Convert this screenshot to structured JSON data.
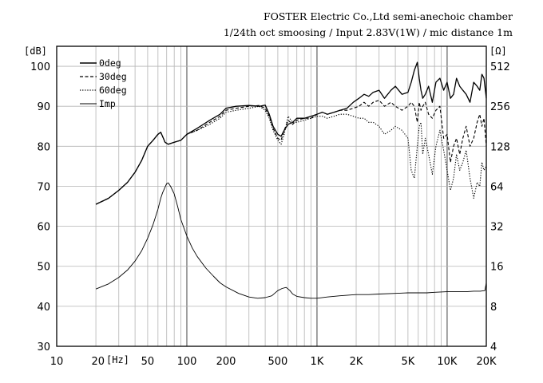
{
  "header": {
    "line1": "FOSTER Electric Co.,Ltd  semi-anechoic chamber",
    "line2": "1/24th oct smoosing / Input 2.83V(1W) / mic distance 1m"
  },
  "chart_data": {
    "type": "line",
    "y_unit_left": "[dB]",
    "y_unit_right": "[Ω]",
    "x_unit": "[Hz]",
    "xscale": "log",
    "xlim": [
      10,
      20000
    ],
    "ylim": [
      30,
      105
    ],
    "y2lim": [
      4,
      724
    ],
    "x_ticks": [
      {
        "v": 10,
        "l": "10"
      },
      {
        "v": 20,
        "l": "20"
      },
      {
        "v": 50,
        "l": "50"
      },
      {
        "v": 100,
        "l": "100"
      },
      {
        "v": 200,
        "l": "200"
      },
      {
        "v": 500,
        "l": "500"
      },
      {
        "v": 1000,
        "l": "1K"
      },
      {
        "v": 2000,
        "l": "2K"
      },
      {
        "v": 5000,
        "l": "5K"
      },
      {
        "v": 10000,
        "l": "10K"
      },
      {
        "v": 20000,
        "l": "20K"
      }
    ],
    "y_ticks": [
      30,
      40,
      50,
      60,
      70,
      80,
      90,
      100
    ],
    "y2_ticks": [
      4,
      8,
      16,
      32,
      64,
      128,
      256,
      512
    ],
    "grid": true,
    "legend_position": "top-left",
    "series": [
      {
        "name": "0deg",
        "dash": "solid",
        "width": 1.3,
        "x": [
          20,
          25,
          30,
          35,
          40,
          45,
          50,
          55,
          60,
          63,
          65,
          68,
          72,
          80,
          90,
          100,
          120,
          150,
          180,
          200,
          240,
          300,
          360,
          400,
          430,
          460,
          500,
          530,
          560,
          600,
          650,
          700,
          800,
          900,
          1000,
          1100,
          1200,
          1350,
          1500,
          1700,
          1900,
          2100,
          2300,
          2500,
          2700,
          3000,
          3300,
          3700,
          4000,
          4500,
          5000,
          5300,
          5600,
          5900,
          6100,
          6300,
          6500,
          6800,
          7200,
          7700,
          8200,
          8800,
          9400,
          10000,
          10600,
          11200,
          11800,
          12500,
          13200,
          14000,
          15000,
          16000,
          17000,
          17800,
          18500,
          19200,
          20000
        ],
        "y": [
          65.5,
          67,
          69,
          71,
          73.5,
          76.5,
          80,
          81.5,
          83,
          83.5,
          82.5,
          81,
          80.5,
          81,
          81.5,
          83,
          84.5,
          86.5,
          88,
          89.5,
          90,
          90.2,
          90,
          90.3,
          88,
          85,
          83,
          82.5,
          84,
          85.5,
          86,
          87,
          87,
          87.5,
          88,
          88.5,
          88,
          88.5,
          89,
          89.5,
          91,
          92,
          93,
          92.5,
          93.5,
          94,
          92,
          94,
          95,
          93,
          93.5,
          96,
          99,
          101,
          97,
          94,
          92,
          93,
          95,
          91,
          96,
          97,
          94,
          96,
          92,
          93,
          97,
          95,
          94,
          93,
          91,
          96,
          95,
          94,
          98,
          97,
          92
        ]
      },
      {
        "name": "30deg",
        "dash": "4,2.5",
        "width": 1.1,
        "x": [
          20,
          25,
          30,
          35,
          40,
          45,
          50,
          55,
          60,
          63,
          65,
          68,
          72,
          80,
          90,
          100,
          120,
          150,
          180,
          200,
          240,
          300,
          360,
          400,
          430,
          460,
          500,
          530,
          560,
          600,
          650,
          700,
          800,
          900,
          1000,
          1100,
          1200,
          1350,
          1500,
          1700,
          1900,
          2100,
          2300,
          2500,
          2700,
          3000,
          3300,
          3700,
          4000,
          4500,
          5000,
          5300,
          5600,
          5900,
          6100,
          6300,
          6500,
          6800,
          7200,
          7700,
          8200,
          8800,
          9400,
          10000,
          10600,
          11200,
          11800,
          12500,
          13200,
          14000,
          15000,
          16000,
          17000,
          17800,
          18500,
          19200,
          20000
        ],
        "y": [
          65.5,
          67,
          69,
          71,
          73.5,
          76.5,
          80,
          81.5,
          83,
          83.5,
          82.5,
          81,
          80.5,
          81,
          81.5,
          83,
          84,
          86,
          87.5,
          89,
          89.5,
          90,
          90.2,
          89.5,
          87.5,
          84.5,
          82,
          81.5,
          84,
          86.5,
          85.5,
          86.5,
          87,
          87,
          88,
          88.5,
          88,
          88.5,
          89,
          89,
          89.5,
          90,
          91,
          90,
          91,
          91.5,
          90,
          91,
          90,
          89,
          90,
          91,
          90,
          86,
          91,
          89,
          90,
          91,
          88,
          87,
          89,
          90,
          82,
          83,
          76,
          80,
          82,
          78,
          82,
          85,
          80,
          82,
          86,
          88,
          85,
          87,
          80
        ]
      },
      {
        "name": "60deg",
        "dash": "1.3,1.8",
        "width": 1.1,
        "x": [
          20,
          25,
          30,
          35,
          40,
          45,
          50,
          55,
          60,
          63,
          65,
          68,
          72,
          80,
          90,
          100,
          120,
          150,
          180,
          200,
          240,
          300,
          360,
          400,
          430,
          460,
          500,
          530,
          560,
          600,
          650,
          700,
          800,
          900,
          1000,
          1100,
          1200,
          1350,
          1500,
          1700,
          1900,
          2100,
          2300,
          2500,
          2700,
          3000,
          3300,
          3700,
          4000,
          4500,
          5000,
          5300,
          5600,
          5900,
          6100,
          6300,
          6500,
          6800,
          7200,
          7700,
          8200,
          8800,
          9400,
          10000,
          10600,
          11200,
          11800,
          12500,
          13200,
          14000,
          15000,
          16000,
          17000,
          17800,
          18500,
          19200,
          20000
        ],
        "y": [
          65.5,
          67,
          69,
          71,
          73.5,
          76.5,
          80,
          81.5,
          83,
          83.5,
          82.5,
          81,
          80.5,
          81,
          81.5,
          83,
          84,
          85.5,
          87,
          88.5,
          89,
          89.5,
          90,
          89,
          87,
          84,
          81.5,
          80.5,
          83,
          87.5,
          86,
          86,
          86.5,
          87,
          87.5,
          87.5,
          87,
          87.5,
          88,
          88,
          87.5,
          87,
          87,
          86,
          86,
          85,
          83,
          84,
          85,
          84,
          82,
          74,
          72,
          80,
          85,
          86,
          78,
          82,
          78,
          73,
          80,
          84,
          79,
          74,
          69,
          72,
          78,
          74,
          76,
          79,
          72,
          67,
          71,
          70,
          76,
          74,
          75
        ]
      },
      {
        "name": "Imp",
        "dash": "solid",
        "width": 0.9,
        "x": [
          20,
          25,
          30,
          35,
          40,
          45,
          50,
          55,
          60,
          63,
          65,
          68,
          70,
          72,
          75,
          80,
          85,
          90,
          100,
          110,
          120,
          140,
          160,
          180,
          200,
          250,
          300,
          350,
          400,
          450,
          500,
          540,
          580,
          620,
          650,
          700,
          800,
          900,
          1000,
          1200,
          1500,
          2000,
          2500,
          3000,
          4000,
          5000,
          6000,
          7000,
          8000,
          10000,
          12000,
          14000,
          16000,
          18000,
          19500,
          20000
        ],
        "y2": [
          10.8,
          11.8,
          13.2,
          15,
          17.5,
          21,
          26,
          33,
          43,
          52,
          57,
          63,
          67,
          68,
          64,
          56,
          45,
          36,
          27,
          22,
          19,
          15.5,
          13.5,
          12,
          11.2,
          10,
          9.4,
          9.2,
          9.3,
          9.6,
          10.5,
          10.9,
          11.1,
          10.5,
          9.9,
          9.5,
          9.3,
          9.2,
          9.2,
          9.4,
          9.6,
          9.8,
          9.8,
          9.9,
          10,
          10.1,
          10.1,
          10.1,
          10.2,
          10.3,
          10.3,
          10.3,
          10.4,
          10.4,
          10.5,
          12
        ]
      }
    ]
  }
}
